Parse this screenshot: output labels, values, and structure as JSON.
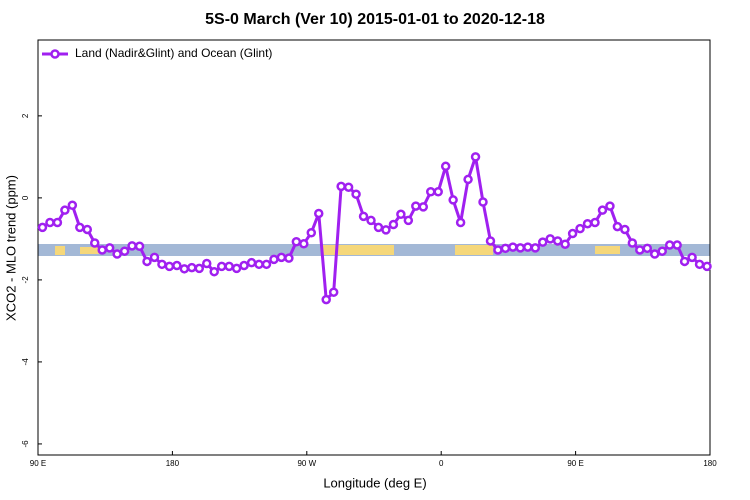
{
  "chart_data": {
    "type": "line",
    "title": "5S-0 March (Ver 10)   2015-01-01 to 2020-12-18",
    "x_label": "Longitude (deg E)",
    "y_label": "XCO2 - MLO trend (ppm)",
    "x": [
      93,
      98,
      103,
      108,
      113,
      118,
      123,
      128,
      133,
      138,
      143,
      148,
      153,
      158,
      163,
      168,
      173,
      178,
      183,
      188,
      193,
      198,
      203,
      208,
      213,
      218,
      223,
      228,
      233,
      238,
      243,
      248,
      253,
      258,
      263,
      268,
      273,
      278,
      283,
      288,
      293,
      298,
      303,
      308,
      313,
      318,
      323,
      328,
      333,
      338,
      343,
      348,
      353,
      358,
      363,
      368,
      373,
      378,
      383,
      388,
      393,
      398,
      403,
      408,
      413,
      418,
      423,
      428,
      433,
      438,
      443,
      448,
      453,
      458,
      463,
      468,
      473,
      478,
      483,
      488,
      493,
      498,
      503,
      508,
      513,
      518,
      523,
      528,
      533,
      538
    ],
    "series": [
      {
        "name": "Land (Nadir&Glint) and Ocean (Glint)",
        "color": "#a020f0",
        "values": [
          -0.72,
          -0.6,
          -0.6,
          -0.3,
          -0.18,
          -0.72,
          -0.77,
          -1.1,
          -1.27,
          -1.22,
          -1.37,
          -1.3,
          -1.17,
          -1.18,
          -1.55,
          -1.45,
          -1.62,
          -1.67,
          -1.65,
          -1.73,
          -1.7,
          -1.72,
          -1.6,
          -1.8,
          -1.67,
          -1.67,
          -1.72,
          -1.65,
          -1.58,
          -1.62,
          -1.62,
          -1.5,
          -1.45,
          -1.47,
          -1.07,
          -1.12,
          -0.85,
          -0.38,
          -2.48,
          -2.3,
          0.28,
          0.26,
          0.09,
          -0.45,
          -0.55,
          -0.72,
          -0.78,
          -0.65,
          -0.4,
          -0.55,
          -0.2,
          -0.22,
          0.15,
          0.15,
          0.77,
          -0.05,
          -0.6,
          0.45,
          1.0,
          -0.1,
          -1.05,
          -1.27,
          -1.23,
          -1.2,
          -1.22,
          -1.2,
          -1.22,
          -1.08,
          -1.0,
          -1.05,
          -1.13,
          -0.87,
          -0.75,
          -0.63,
          -0.6,
          -0.3,
          -0.2,
          -0.7,
          -0.77,
          -1.1,
          -1.27,
          -1.23,
          -1.37,
          -1.3,
          -1.15,
          -1.15,
          -1.55,
          -1.45,
          -1.62,
          -1.67
        ]
      }
    ],
    "xlim": [
      90,
      540
    ],
    "xticks": [
      {
        "value": 90,
        "label": "90 E"
      },
      180,
      {
        "value": 270,
        "label": "90 W"
      },
      {
        "value": 360,
        "label": "0"
      },
      {
        "value": 450,
        "label": "90 E"
      },
      {
        "value": 540,
        "label": "180"
      }
    ],
    "ylim": [
      -6.27,
      3.85
    ],
    "yticks": [
      -6,
      -4,
      -2,
      0,
      2
    ],
    "legend": "top-left"
  }
}
